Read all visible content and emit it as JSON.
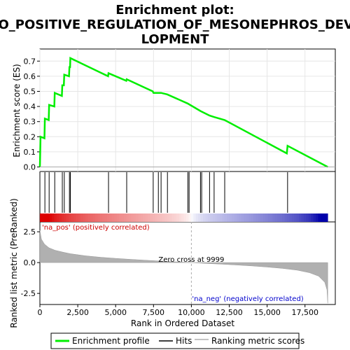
{
  "title_lines": [
    "Enrichment plot:",
    "GO_POSITIVE_REGULATION_OF_MESONEPHROS_DEVE",
    "LOPMENT"
  ],
  "colors": {
    "enrichment_line": "#00ee00",
    "hits": "#000000",
    "metric_fill": "#b0b0b0",
    "zero_line": "#aaaaaa",
    "pos_label": "#cc0000",
    "neg_label": "#0000cc",
    "heat_pos": "#dd0000",
    "heat_neg": "#0000aa"
  },
  "chart_data": [
    {
      "type": "line",
      "name": "enrichment-profile",
      "ylabel": "Enrichment score (ES)",
      "xlim": [
        0,
        19500
      ],
      "ylim": [
        -0.03,
        0.78
      ],
      "yticks": [
        0.0,
        0.1,
        0.2,
        0.3,
        0.4,
        0.5,
        0.6,
        0.7
      ],
      "ytick_labels": [
        "0.0",
        "0.1",
        "0.2",
        "0.3",
        "0.4",
        "0.5",
        "0.6",
        "0.7"
      ],
      "points": [
        [
          0,
          0.0
        ],
        [
          40,
          0.2
        ],
        [
          300,
          0.19
        ],
        [
          330,
          0.32
        ],
        [
          580,
          0.31
        ],
        [
          610,
          0.41
        ],
        [
          950,
          0.4
        ],
        [
          980,
          0.49
        ],
        [
          1450,
          0.47
        ],
        [
          1480,
          0.54
        ],
        [
          1580,
          0.54
        ],
        [
          1610,
          0.61
        ],
        [
          1920,
          0.6
        ],
        [
          1950,
          0.66
        ],
        [
          1990,
          0.66
        ],
        [
          2010,
          0.72
        ],
        [
          4500,
          0.6
        ],
        [
          4530,
          0.62
        ],
        [
          5700,
          0.57
        ],
        [
          5730,
          0.58
        ],
        [
          7450,
          0.5
        ],
        [
          7500,
          0.49
        ],
        [
          7800,
          0.49
        ],
        [
          8000,
          0.49
        ],
        [
          8400,
          0.48
        ],
        [
          9750,
          0.42
        ],
        [
          10600,
          0.37
        ],
        [
          11200,
          0.34
        ],
        [
          11500,
          0.33
        ],
        [
          12200,
          0.31
        ],
        [
          16300,
          0.09
        ],
        [
          16350,
          0.14
        ],
        [
          19000,
          0.0
        ]
      ],
      "hits": [
        330,
        610,
        980,
        1480,
        1610,
        1950,
        2010,
        4530,
        5730,
        7480,
        7820,
        8000,
        8420,
        9770,
        9850,
        10600,
        10680,
        11200,
        11500,
        12200,
        16350
      ]
    },
    {
      "type": "area",
      "name": "ranked-list-metric",
      "xlabel": "Rank in Ordered Dataset",
      "ylabel": "Ranked list metric (PreRanked)",
      "xlim": [
        0,
        19500
      ],
      "ylim": [
        -3.4,
        3.3
      ],
      "xticks": [
        0,
        2500,
        5000,
        7500,
        10000,
        12500,
        15000,
        17500
      ],
      "xtick_labels": [
        "0",
        "2,500",
        "5,000",
        "7,500",
        "10,000",
        "12,500",
        "15,000",
        "17,500"
      ],
      "yticks": [
        -2.5,
        0.0,
        2.5
      ],
      "ytick_labels": [
        "-2.5",
        "0.0",
        "2.5"
      ],
      "points": [
        [
          0,
          2.6
        ],
        [
          100,
          1.9
        ],
        [
          300,
          1.5
        ],
        [
          600,
          1.2
        ],
        [
          1000,
          1.0
        ],
        [
          1500,
          0.85
        ],
        [
          2000,
          0.72
        ],
        [
          3000,
          0.55
        ],
        [
          4000,
          0.43
        ],
        [
          5000,
          0.34
        ],
        [
          6000,
          0.26
        ],
        [
          7000,
          0.19
        ],
        [
          8000,
          0.12
        ],
        [
          9000,
          0.06
        ],
        [
          9999,
          0.0
        ],
        [
          11000,
          -0.07
        ],
        [
          12000,
          -0.13
        ],
        [
          13000,
          -0.2
        ],
        [
          14000,
          -0.27
        ],
        [
          15000,
          -0.36
        ],
        [
          16000,
          -0.47
        ],
        [
          17000,
          -0.62
        ],
        [
          17800,
          -0.82
        ],
        [
          18400,
          -1.1
        ],
        [
          18800,
          -1.6
        ],
        [
          18950,
          -2.2
        ],
        [
          19000,
          -3.3
        ]
      ],
      "zero_cross": 9999,
      "zero_cross_label": "Zero cross at 9999",
      "pos_label": "'na_pos' (positively correlated)",
      "neg_label": "'na_neg' (negatively correlated)"
    }
  ],
  "legend": {
    "items": [
      {
        "label": "Enrichment profile"
      },
      {
        "label": "Hits"
      },
      {
        "label": "Ranking metric scores"
      }
    ]
  }
}
